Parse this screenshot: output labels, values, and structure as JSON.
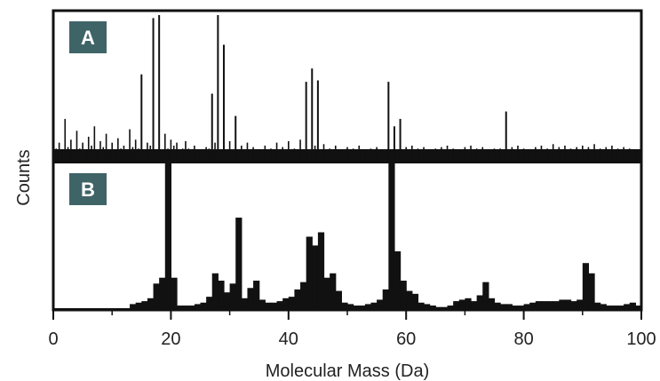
{
  "chart_data": {
    "type": "bar",
    "xlabel": "Molecular Mass (Da)",
    "ylabel": "Counts",
    "xlim": [
      0,
      100
    ],
    "xticks": [
      0,
      20,
      40,
      60,
      80,
      100
    ],
    "grid": false,
    "colors": {
      "bars": "#111111",
      "label_box": "#3f6467",
      "frame": "#111111"
    },
    "panels": [
      {
        "label": "A",
        "ylim": [
          0,
          100
        ],
        "baseline": [
          [
            0.5,
            10
          ],
          [
            1,
            14
          ],
          [
            1.5,
            9
          ],
          [
            2,
            30
          ],
          [
            2.5,
            11
          ],
          [
            3,
            16
          ],
          [
            3.5,
            8
          ],
          [
            4,
            22
          ],
          [
            4.5,
            10
          ],
          [
            5,
            14
          ],
          [
            5.5,
            9
          ],
          [
            6,
            18
          ],
          [
            6.5,
            12
          ],
          [
            7,
            25
          ],
          [
            7.5,
            9
          ],
          [
            8,
            15
          ],
          [
            8.5,
            11
          ],
          [
            9,
            20
          ],
          [
            9.5,
            8
          ],
          [
            10,
            14
          ],
          [
            10.5,
            9
          ],
          [
            11,
            17
          ],
          [
            11.5,
            10
          ],
          [
            12,
            12
          ],
          [
            12.5,
            8
          ],
          [
            13,
            23
          ],
          [
            13.5,
            11
          ],
          [
            14,
            16
          ],
          [
            14.5,
            10
          ],
          [
            16,
            14
          ],
          [
            16.5,
            12
          ],
          [
            19,
            20
          ],
          [
            19.5,
            10
          ],
          [
            20,
            16
          ],
          [
            20.5,
            12
          ],
          [
            21,
            14
          ],
          [
            22,
            10
          ],
          [
            22.5,
            15
          ],
          [
            23,
            10
          ],
          [
            24,
            12
          ],
          [
            25,
            9
          ],
          [
            26,
            11
          ],
          [
            26.5,
            10
          ],
          [
            27.5,
            14
          ],
          [
            30,
            15
          ],
          [
            31,
            10
          ],
          [
            32,
            12
          ],
          [
            33,
            14
          ],
          [
            34,
            11
          ],
          [
            35,
            9
          ],
          [
            36,
            12
          ],
          [
            37,
            10
          ],
          [
            38,
            14
          ],
          [
            39,
            11
          ],
          [
            40,
            15
          ],
          [
            41,
            10
          ],
          [
            42,
            16
          ],
          [
            44.5,
            12
          ],
          [
            46,
            13
          ],
          [
            47,
            10
          ],
          [
            48,
            12
          ],
          [
            49,
            9
          ],
          [
            50,
            11
          ],
          [
            51,
            10
          ],
          [
            52,
            12
          ],
          [
            53,
            9
          ],
          [
            54,
            10
          ],
          [
            55,
            11
          ],
          [
            58,
            12
          ],
          [
            60,
            11
          ],
          [
            61,
            12
          ],
          [
            62,
            10
          ],
          [
            63,
            11
          ],
          [
            64,
            9
          ],
          [
            65,
            10
          ],
          [
            66,
            11
          ],
          [
            67,
            12
          ],
          [
            68,
            10
          ],
          [
            69,
            9
          ],
          [
            70,
            11
          ],
          [
            71,
            12
          ],
          [
            72,
            10
          ],
          [
            73,
            11
          ],
          [
            74,
            9
          ],
          [
            75,
            10
          ],
          [
            76,
            10
          ],
          [
            78,
            11
          ],
          [
            79,
            12
          ],
          [
            80,
            10
          ],
          [
            81,
            9
          ],
          [
            82,
            11
          ],
          [
            83,
            12
          ],
          [
            84,
            10
          ],
          [
            85,
            13
          ],
          [
            86,
            11
          ],
          [
            87,
            12
          ],
          [
            88,
            10
          ],
          [
            89,
            11
          ],
          [
            90,
            12
          ],
          [
            91,
            11
          ],
          [
            92,
            13
          ],
          [
            93,
            10
          ],
          [
            94,
            11
          ],
          [
            95,
            12
          ],
          [
            96,
            10
          ],
          [
            97,
            11
          ],
          [
            98,
            10
          ],
          [
            99,
            9
          ]
        ],
        "peaks": [
          [
            15,
            60
          ],
          [
            17,
            98
          ],
          [
            18,
            100
          ],
          [
            28,
            100
          ],
          [
            29,
            80
          ],
          [
            27,
            47
          ],
          [
            43,
            55
          ],
          [
            44,
            64
          ],
          [
            45,
            56
          ],
          [
            57,
            55
          ],
          [
            59,
            30
          ],
          [
            31,
            32
          ],
          [
            58,
            25
          ],
          [
            77,
            35
          ]
        ]
      },
      {
        "label": "B",
        "ylim": [
          0,
          100
        ],
        "values": [
          0,
          0,
          0,
          0,
          0,
          0,
          0,
          0,
          0,
          0,
          0,
          0,
          0,
          4,
          5,
          6,
          8,
          18,
          22,
          100,
          22,
          3,
          3,
          3,
          4,
          5,
          9,
          25,
          20,
          12,
          18,
          63,
          8,
          15,
          20,
          7,
          5,
          5,
          6,
          8,
          9,
          14,
          19,
          50,
          44,
          53,
          22,
          25,
          13,
          5,
          4,
          3,
          3,
          4,
          5,
          7,
          14,
          100,
          40,
          20,
          13,
          11,
          5,
          4,
          3,
          2,
          2,
          3,
          6,
          7,
          8,
          6,
          10,
          19,
          8,
          5,
          4,
          4,
          3,
          3,
          4,
          5,
          6,
          6,
          6,
          6,
          7,
          7,
          6,
          7,
          32,
          25,
          5,
          4,
          3,
          3,
          3,
          4,
          5,
          3
        ]
      }
    ]
  }
}
